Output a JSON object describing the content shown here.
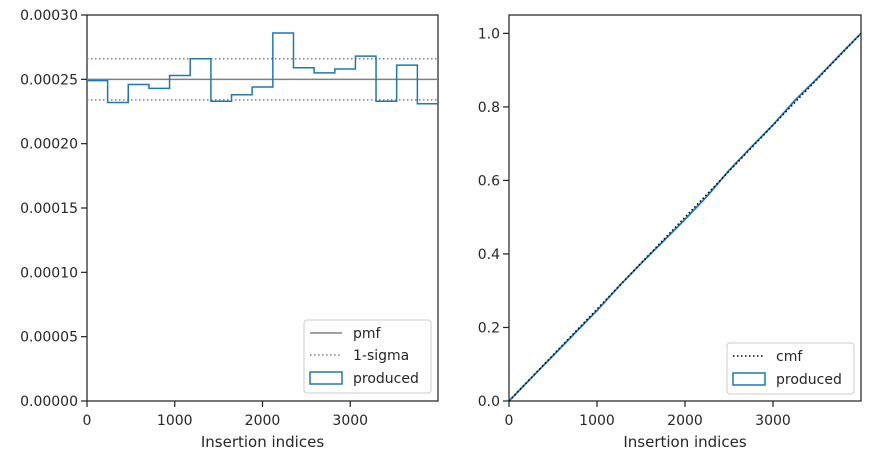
{
  "colors": {
    "produced": "#1f77b4",
    "pmf": "#808080",
    "sigma": "#808080",
    "cmf": "#000000",
    "axes": "#262626"
  },
  "chart_data": [
    {
      "type": "step",
      "xlabel": "Insertion indices",
      "ylabel": "",
      "xlim": [
        0,
        4000
      ],
      "ylim": [
        0,
        0.0003
      ],
      "xticks": [
        0,
        1000,
        2000,
        3000
      ],
      "xtick_labels": [
        "0",
        "1000",
        "2000",
        "3000"
      ],
      "yticks": [
        0,
        5e-05,
        0.0001,
        0.00015,
        0.0002,
        0.00025,
        0.0003
      ],
      "ytick_labels": [
        "0.00000",
        "0.00005",
        "0.00010",
        "0.00015",
        "0.00020",
        "0.00025",
        "0.00030"
      ],
      "bin_edges": [
        0,
        235,
        470,
        706,
        941,
        1176,
        1412,
        1647,
        1882,
        2118,
        2353,
        2588,
        2824,
        3059,
        3294,
        3529,
        3765,
        4000
      ],
      "series": [
        {
          "name": "produced",
          "kind": "histogram-step",
          "values": [
            0.000249,
            0.000232,
            0.000246,
            0.000243,
            0.000253,
            0.000266,
            0.000233,
            0.000238,
            0.000244,
            0.000286,
            0.000259,
            0.000255,
            0.000258,
            0.000268,
            0.000233,
            0.000261,
            0.000231
          ]
        },
        {
          "name": "pmf",
          "kind": "hline",
          "value": 0.00025
        },
        {
          "name": "1-sigma",
          "kind": "hline-pair",
          "values": [
            0.000234,
            0.000266
          ]
        }
      ],
      "legend": {
        "placement": "lower-right",
        "entries": [
          {
            "label": "pmf",
            "style": "solid-line"
          },
          {
            "label": "1-sigma",
            "style": "dotted-line"
          },
          {
            "label": "produced",
            "style": "box"
          }
        ]
      }
    },
    {
      "type": "step",
      "xlabel": "Insertion indices",
      "ylabel": "",
      "xlim": [
        0,
        4000
      ],
      "ylim": [
        0,
        1.05
      ],
      "xticks": [
        0,
        1000,
        2000,
        3000
      ],
      "xtick_labels": [
        "0",
        "1000",
        "2000",
        "3000"
      ],
      "yticks": [
        0,
        0.2,
        0.4,
        0.6,
        0.8,
        1.0
      ],
      "ytick_labels": [
        "0.0",
        "0.2",
        "0.4",
        "0.6",
        "0.8",
        "1.0"
      ],
      "series": [
        {
          "name": "produced",
          "kind": "cumulative-step",
          "x": [
            0,
            250,
            500,
            750,
            1000,
            1250,
            1500,
            1750,
            2000,
            2250,
            2500,
            2750,
            3000,
            3250,
            3500,
            3750,
            4000
          ],
          "values": [
            0,
            0.062,
            0.123,
            0.185,
            0.246,
            0.312,
            0.374,
            0.434,
            0.494,
            0.557,
            0.627,
            0.69,
            0.751,
            0.818,
            0.877,
            0.939,
            1.0
          ]
        },
        {
          "name": "cmf",
          "kind": "diagonal",
          "x": [
            0,
            4000
          ],
          "values": [
            0,
            1.0
          ]
        }
      ],
      "legend": {
        "placement": "lower-right",
        "entries": [
          {
            "label": "cmf",
            "style": "dotted-line"
          },
          {
            "label": "produced",
            "style": "box"
          }
        ]
      }
    }
  ]
}
